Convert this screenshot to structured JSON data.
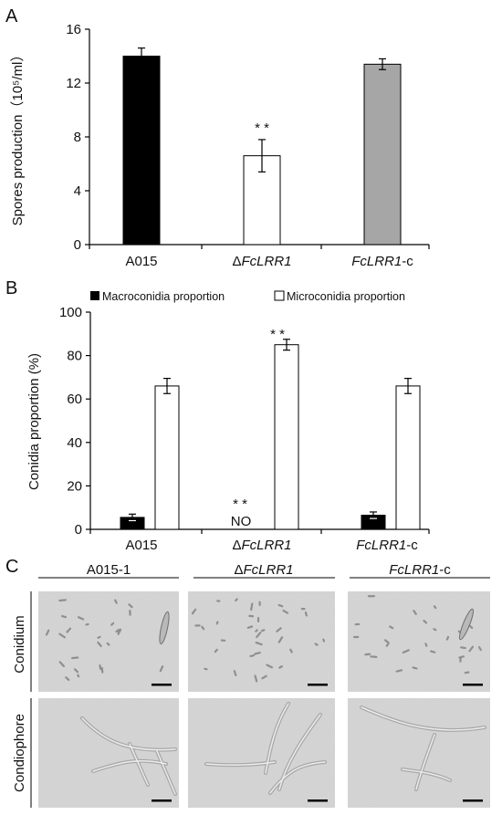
{
  "panel_a": {
    "letter": "A",
    "ylabel_main": "Spores production",
    "ylabel_unit": "（10⁵/ml）",
    "significance": "* *",
    "categories": [
      {
        "pre": "",
        "italic": "",
        "post": "A015"
      },
      {
        "pre": "Δ",
        "italic": "FcLRR1",
        "post": ""
      },
      {
        "pre": "",
        "italic": "FcLRR1",
        "post": "-c"
      }
    ]
  },
  "panel_b": {
    "letter": "B",
    "ylabel": "Conidia proportion (%)",
    "legend_macro": "Macroconidia proportion",
    "legend_micro": "Microconidia proportion",
    "significance_micro": "* *",
    "significance_macro": "* *",
    "no_label": "NO",
    "categories": [
      {
        "pre": "",
        "italic": "",
        "post": "A015"
      },
      {
        "pre": "Δ",
        "italic": "FcLRR1",
        "post": ""
      },
      {
        "pre": "",
        "italic": "FcLRR1",
        "post": "-c"
      }
    ]
  },
  "panel_c": {
    "letter": "C",
    "columns": [
      {
        "pre": "",
        "italic": "",
        "post": "A015-1"
      },
      {
        "pre": "Δ",
        "italic": "FcLRR1",
        "post": ""
      },
      {
        "pre": "",
        "italic": "FcLRR1",
        "post": "-c"
      }
    ],
    "rows": [
      "Conidium",
      "Condiophore"
    ]
  },
  "chart_data": [
    {
      "type": "bar",
      "categories": [
        "A015",
        "ΔFcLRR1",
        "FcLRR1-c"
      ],
      "values": [
        14.0,
        6.6,
        13.4
      ],
      "errors": [
        0.6,
        1.2,
        0.4
      ],
      "bar_colors": [
        "#000000",
        "#ffffff",
        "#a6a6a6"
      ],
      "ylabel": "Spores production（10⁵/ml）",
      "ylim": [
        0,
        16
      ],
      "yticks": [
        0,
        4,
        8,
        12,
        16
      ],
      "annotations": [
        {
          "category": "ΔFcLRR1",
          "text": "* *"
        }
      ]
    },
    {
      "type": "bar",
      "categories": [
        "A015",
        "ΔFcLRR1",
        "FcLRR1-c"
      ],
      "series": [
        {
          "name": "Macroconidia proportion",
          "values": [
            5.5,
            0,
            6.5
          ],
          "errors": [
            1.5,
            0,
            1.5
          ],
          "color": "#000000"
        },
        {
          "name": "Microconidia proportion",
          "values": [
            66,
            85,
            66
          ],
          "errors": [
            3.5,
            2.5,
            3.5
          ],
          "color": "#ffffff"
        }
      ],
      "ylabel": "Conidia proportion (%)",
      "ylim": [
        0,
        100
      ],
      "yticks": [
        0,
        20,
        40,
        60,
        80,
        100
      ],
      "legend": "top",
      "annotations": [
        {
          "category": "ΔFcLRR1",
          "series": "Microconidia proportion",
          "text": "* *"
        },
        {
          "category": "ΔFcLRR1",
          "series": "Macroconidia proportion",
          "text": "* *"
        },
        {
          "category": "ΔFcLRR1",
          "series": "Macroconidia proportion",
          "text": "NO"
        }
      ]
    }
  ]
}
